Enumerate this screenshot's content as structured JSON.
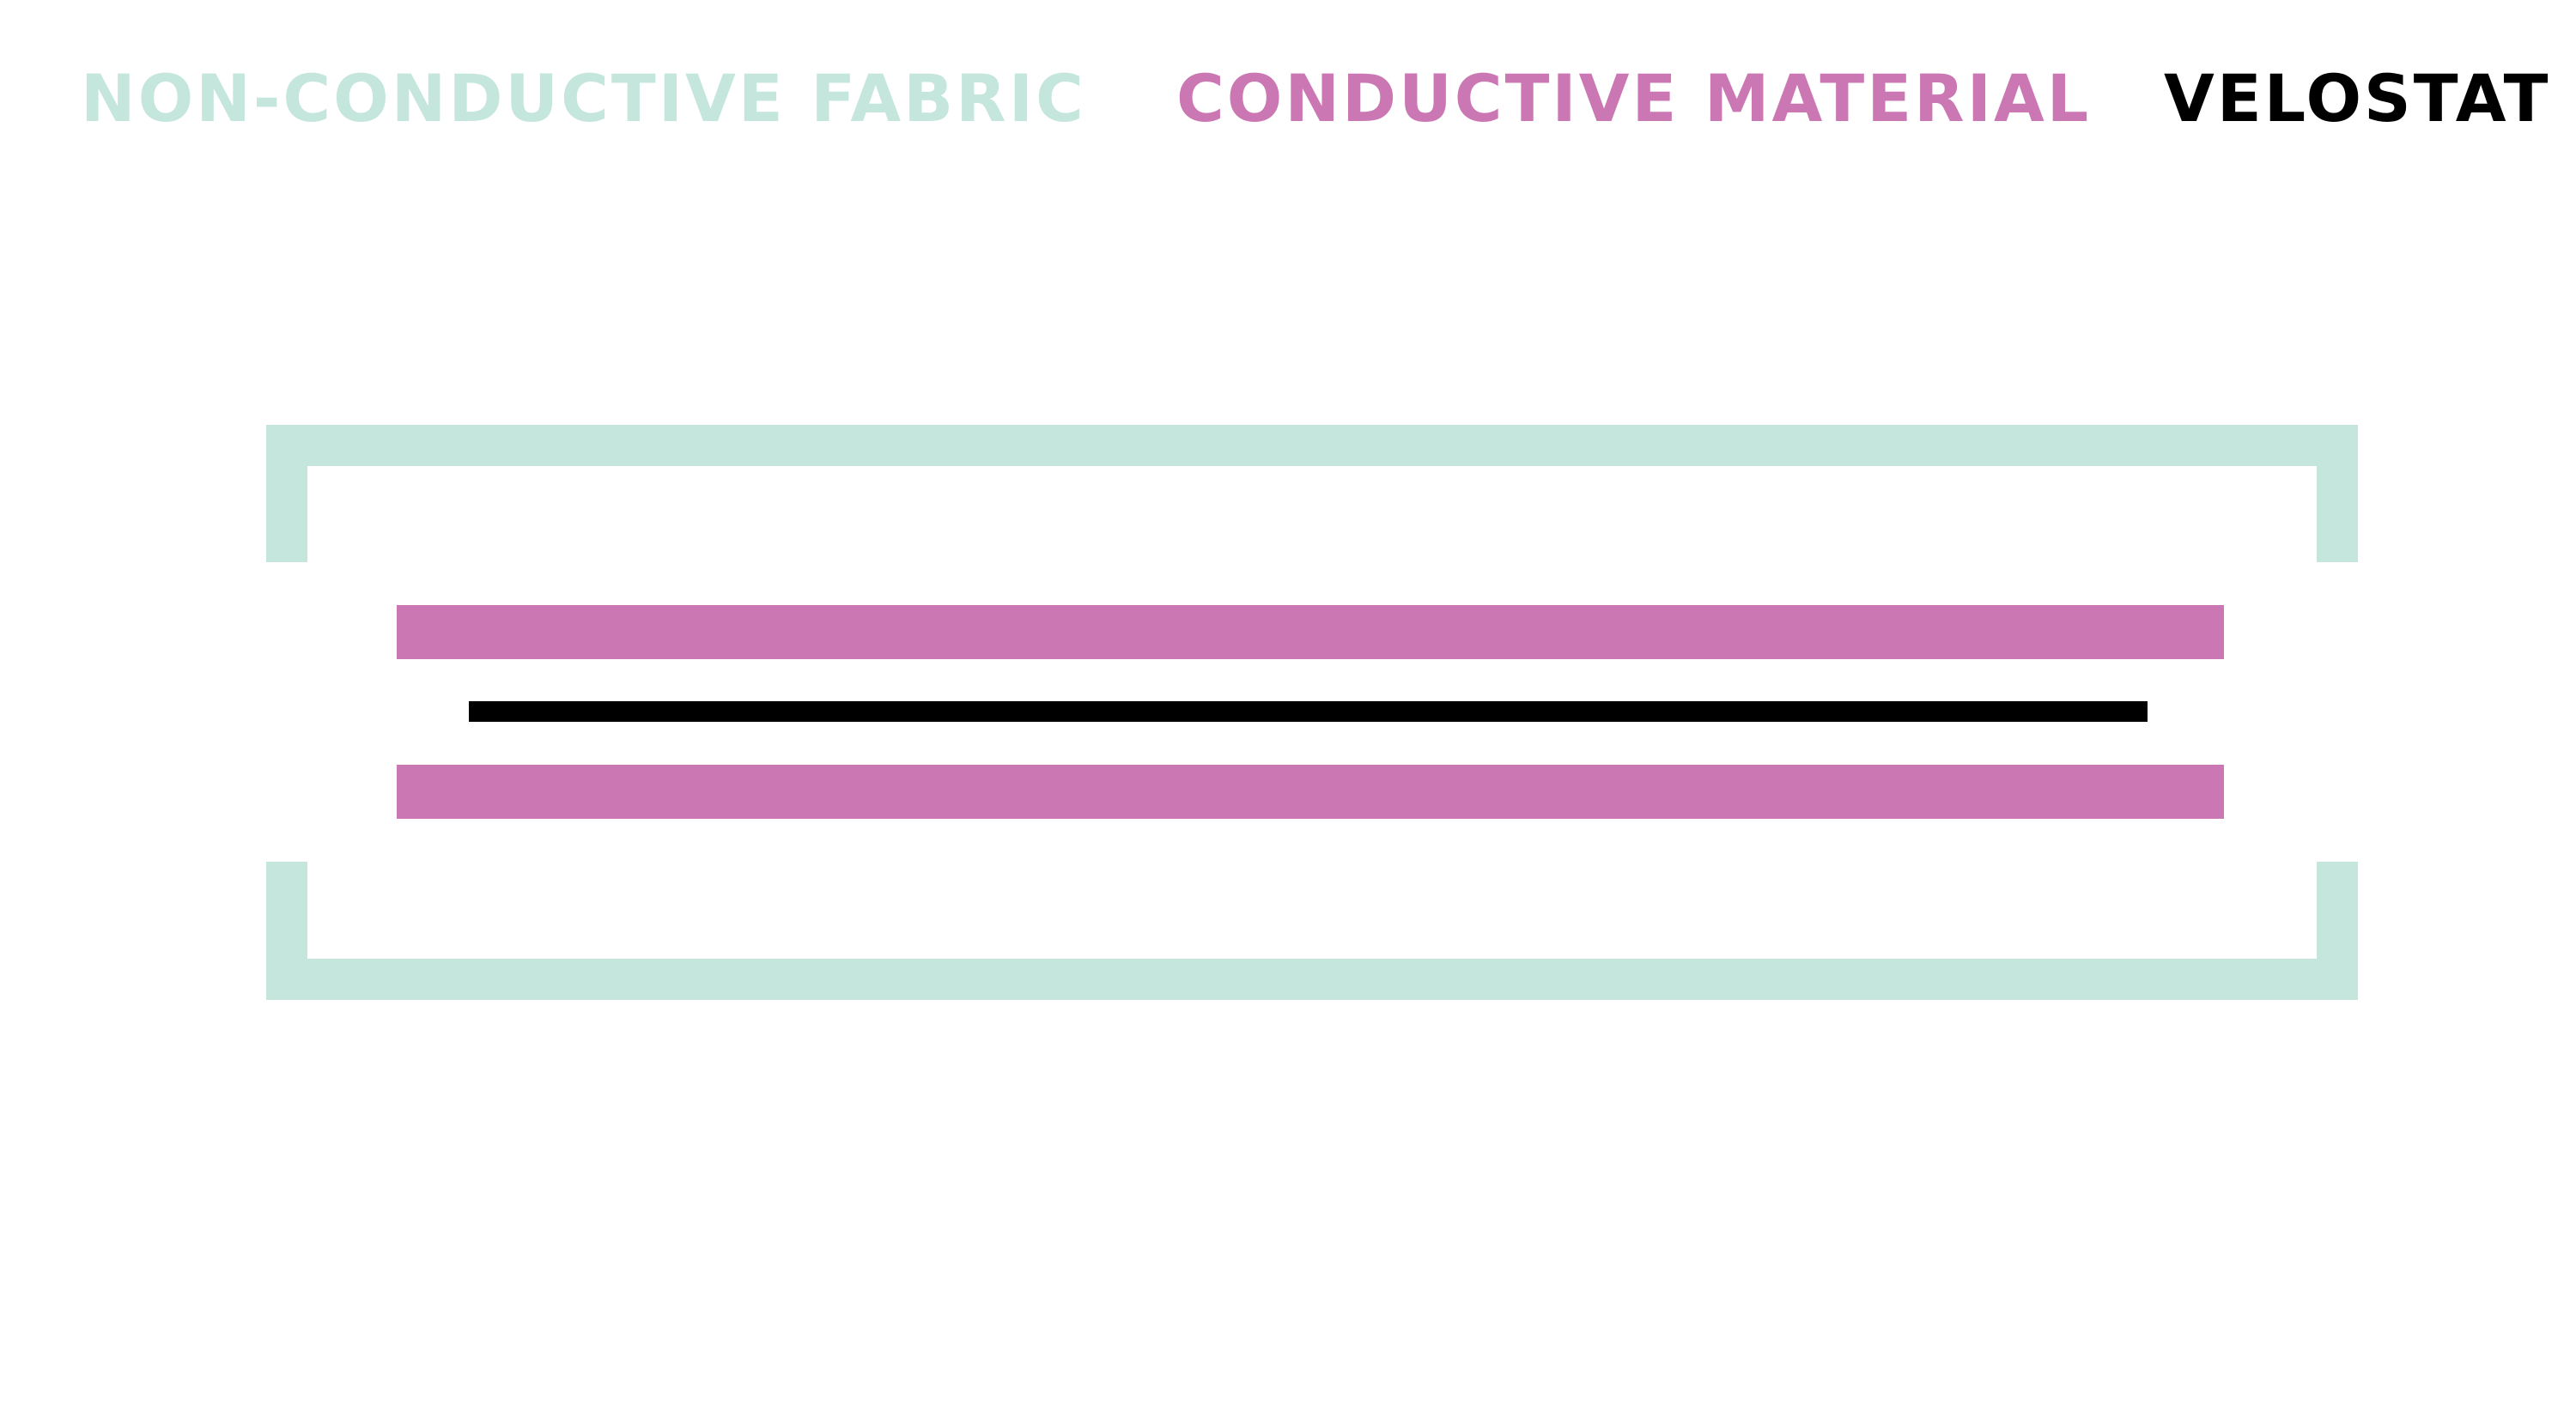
{
  "legend": {
    "fabric": {
      "label": "NON-CONDUCTIVE FABRIC",
      "color": "#c5e6dc"
    },
    "conductive": {
      "label": "CONDUCTIVE MATERIAL",
      "color": "#cb77b3"
    },
    "velostat": {
      "label": "VELOSTAT",
      "color": "#000000"
    }
  },
  "background": "#ffffff"
}
